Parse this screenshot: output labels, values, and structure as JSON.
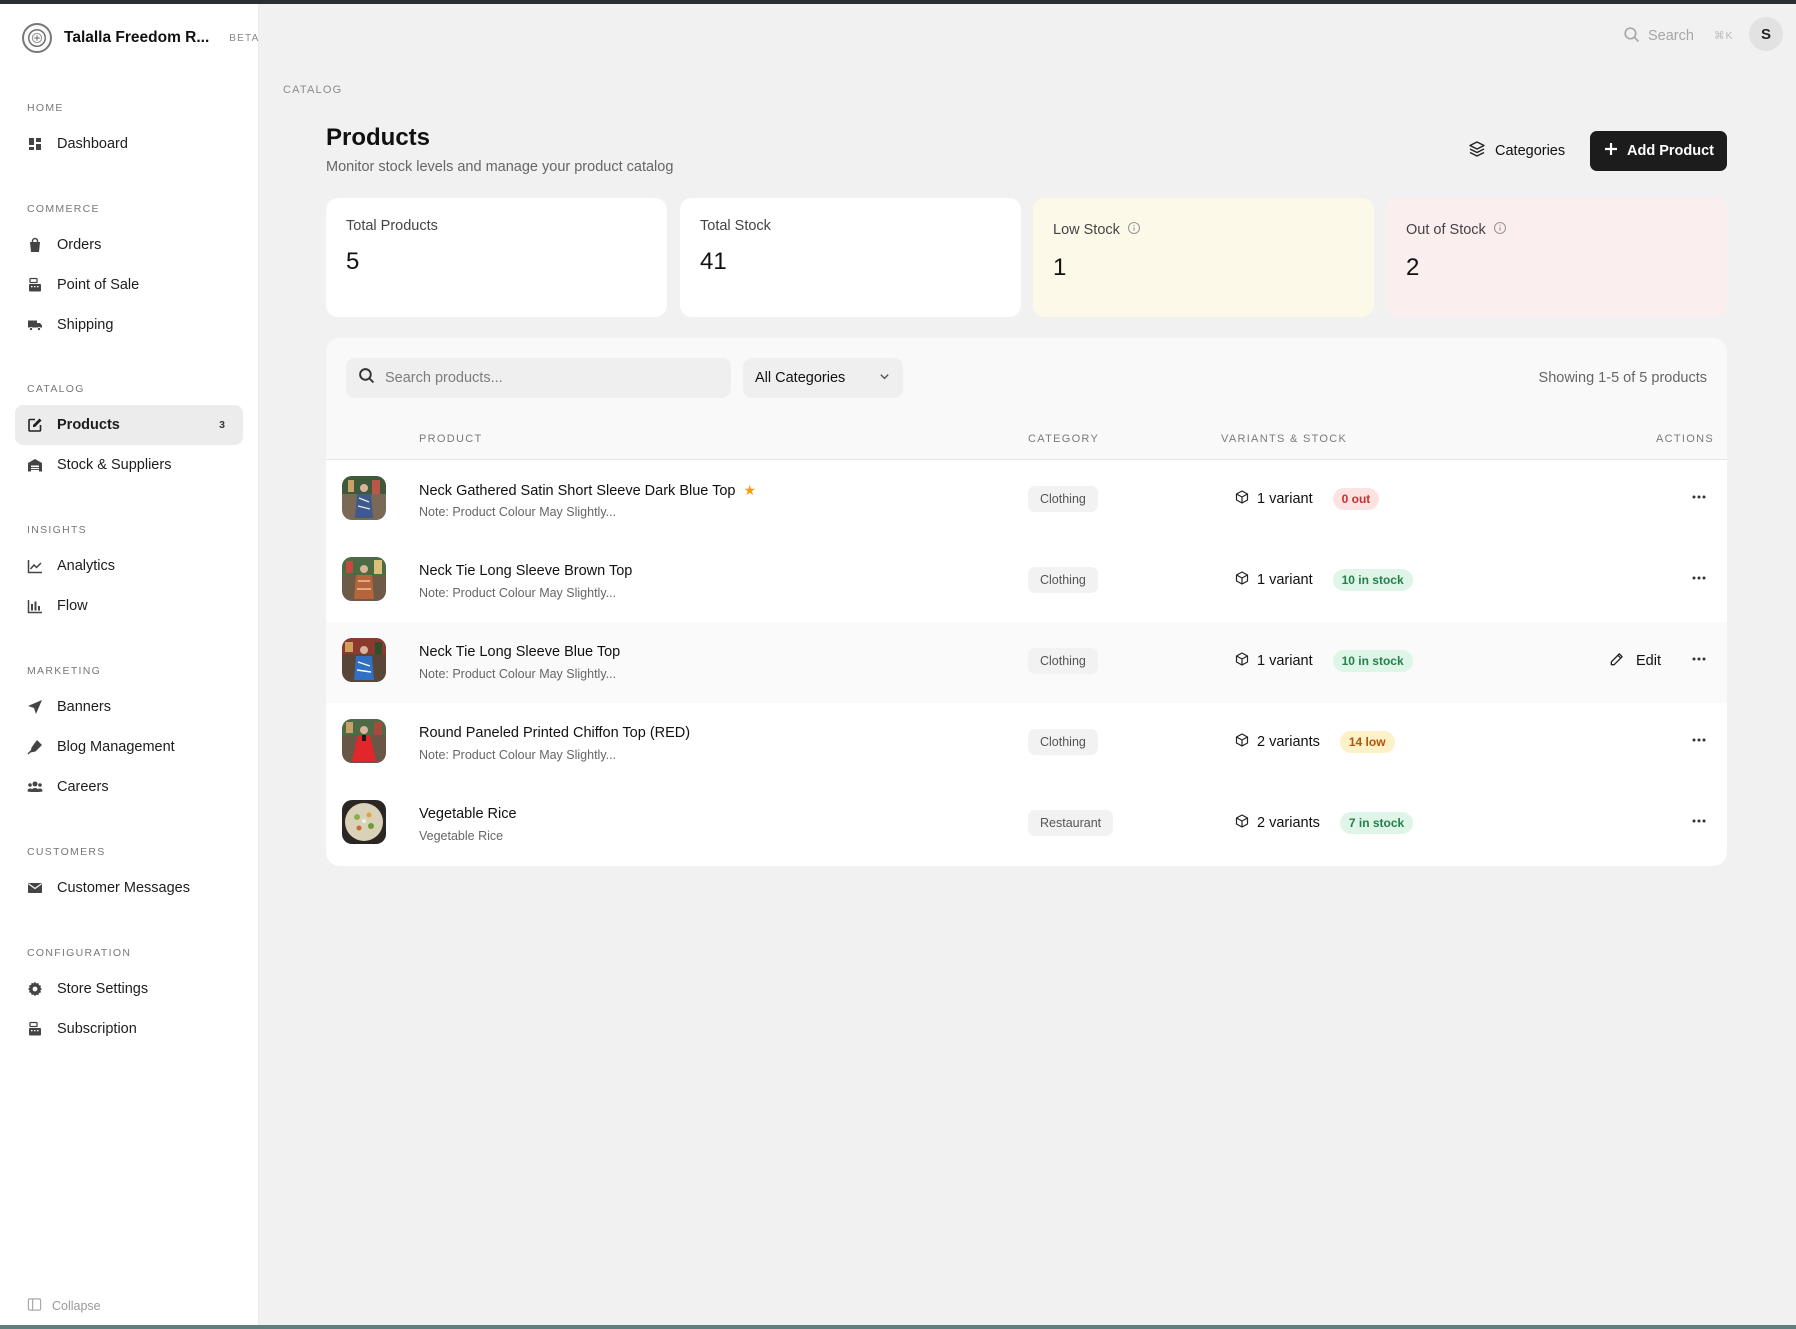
{
  "brand": {
    "name": "Talalla Freedom R...",
    "badge": "BETA"
  },
  "topbar": {
    "search_label": "Search",
    "shortcut": "⌘K",
    "avatar_initial": "S"
  },
  "sidebar": {
    "sections": [
      {
        "title": "HOME",
        "items": [
          {
            "label": "Dashboard",
            "icon": "dashboard-icon"
          }
        ]
      },
      {
        "title": "COMMERCE",
        "items": [
          {
            "label": "Orders",
            "icon": "bag-icon"
          },
          {
            "label": "Point of Sale",
            "icon": "cash-register-icon"
          },
          {
            "label": "Shipping",
            "icon": "truck-icon"
          }
        ]
      },
      {
        "title": "CATALOG",
        "items": [
          {
            "label": "Products",
            "icon": "edit-square-icon",
            "count": "3",
            "active": true
          },
          {
            "label": "Stock & Suppliers",
            "icon": "warehouse-icon"
          }
        ]
      },
      {
        "title": "INSIGHTS",
        "items": [
          {
            "label": "Analytics",
            "icon": "line-chart-icon"
          },
          {
            "label": "Flow",
            "icon": "bar-chart-icon"
          }
        ]
      },
      {
        "title": "MARKETING",
        "items": [
          {
            "label": "Banners",
            "icon": "send-icon"
          },
          {
            "label": "Blog Management",
            "icon": "pen-nib-icon"
          },
          {
            "label": "Careers",
            "icon": "users-icon"
          }
        ]
      },
      {
        "title": "CUSTOMERS",
        "items": [
          {
            "label": "Customer Messages",
            "icon": "envelope-icon"
          }
        ]
      },
      {
        "title": "CONFIGURATION",
        "items": [
          {
            "label": "Store Settings",
            "icon": "gear-icon"
          },
          {
            "label": "Subscription",
            "icon": "cash-register-icon"
          }
        ]
      }
    ],
    "collapse_label": "Collapse"
  },
  "page": {
    "breadcrumb": "CATALOG",
    "title": "Products",
    "subtitle": "Monitor stock levels and manage your product catalog",
    "categories_button": "Categories",
    "add_button": "Add Product"
  },
  "stats": [
    {
      "label": "Total Products",
      "value": "5"
    },
    {
      "label": "Total Stock",
      "value": "41"
    },
    {
      "label": "Low Stock",
      "value": "1"
    },
    {
      "label": "Out of Stock",
      "value": "2"
    }
  ],
  "table": {
    "search_placeholder": "Search products...",
    "category_filter": "All Categories",
    "showing": "Showing 1-5 of 5 products",
    "columns": [
      "PRODUCT",
      "CATEGORY",
      "VARIANTS & STOCK",
      "ACTIONS"
    ],
    "edit_label": "Edit",
    "rows": [
      {
        "name": "Neck Gathered Satin Short Sleeve Dark Blue Top",
        "note": "Note: Product Colour May Slightly...",
        "category": "Clothing",
        "variants": "1 variant",
        "stock": "0 out",
        "stock_status": "out",
        "featured": true
      },
      {
        "name": "Neck Tie Long Sleeve Brown Top",
        "note": "Note: Product Colour May Slightly...",
        "category": "Clothing",
        "variants": "1 variant",
        "stock": "10 in stock",
        "stock_status": "in"
      },
      {
        "name": "Neck Tie Long Sleeve Blue Top",
        "note": "Note: Product Colour May Slightly...",
        "category": "Clothing",
        "variants": "1 variant",
        "stock": "10 in stock",
        "stock_status": "in"
      },
      {
        "name": "Round Paneled Printed Chiffon Top (RED)",
        "note": "Note: Product Colour May Slightly...",
        "category": "Clothing",
        "variants": "2 variants",
        "stock": "14 low",
        "stock_status": "low"
      },
      {
        "name": "Vegetable Rice",
        "note": "Vegetable Rice",
        "category": "Restaurant",
        "variants": "2 variants",
        "stock": "7 in stock",
        "stock_status": "in"
      }
    ]
  },
  "colors": {
    "primary_button": "#1c1c1c",
    "low_stock_card": "#fdf9e9",
    "out_stock_card": "#fbeeee",
    "star": "#f59e0b"
  }
}
